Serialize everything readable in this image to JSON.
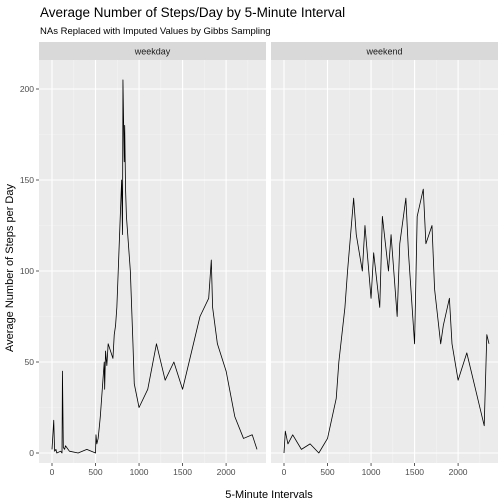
{
  "chart_data": {
    "type": "line",
    "title": "Average Number of Steps/Day by 5-Minute Interval",
    "subtitle": "NAs Replaced with Imputed Values by Gibbs Sampling",
    "xlabel": "5-Minute Intervals",
    "ylabel": "Average Number of Steps per Day",
    "xlim": [
      0,
      2355
    ],
    "ylim": [
      0,
      210
    ],
    "x_ticks": [
      0,
      500,
      1000,
      1500,
      2000
    ],
    "y_ticks": [
      0,
      50,
      100,
      150,
      200
    ],
    "grid": true,
    "facets": [
      {
        "name": "weekday",
        "x": [
          0,
          20,
          30,
          45,
          55,
          100,
          115,
          120,
          130,
          145,
          155,
          200,
          300,
          400,
          500,
          505,
          515,
          530,
          545,
          555,
          600,
          605,
          615,
          630,
          645,
          700,
          715,
          730,
          745,
          800,
          810,
          815,
          830,
          835,
          845,
          855,
          900,
          930,
          945,
          1000,
          1100,
          1200,
          1300,
          1400,
          1500,
          1600,
          1700,
          1800,
          1830,
          1845,
          1900,
          2000,
          2100,
          2200,
          2300,
          2355
        ],
        "y": [
          2,
          18,
          1,
          2,
          0,
          1,
          0,
          45,
          3,
          2,
          4,
          1,
          0,
          2,
          0,
          10,
          5,
          8,
          15,
          20,
          50,
          35,
          56,
          48,
          60,
          52,
          65,
          70,
          80,
          150,
          120,
          205,
          160,
          180,
          145,
          130,
          100,
          60,
          38,
          25,
          35,
          60,
          40,
          50,
          35,
          55,
          75,
          85,
          106,
          80,
          60,
          45,
          20,
          8,
          10,
          2
        ]
      },
      {
        "name": "weekend",
        "x": [
          0,
          15,
          45,
          100,
          200,
          300,
          400,
          500,
          600,
          630,
          700,
          730,
          800,
          830,
          900,
          930,
          1000,
          1030,
          1100,
          1130,
          1200,
          1230,
          1300,
          1330,
          1400,
          1430,
          1500,
          1530,
          1600,
          1630,
          1700,
          1730,
          1800,
          1830,
          1900,
          1930,
          2000,
          2100,
          2200,
          2300,
          2330,
          2355
        ],
        "y": [
          0,
          12,
          5,
          10,
          2,
          5,
          0,
          8,
          30,
          50,
          80,
          100,
          140,
          120,
          100,
          125,
          85,
          110,
          80,
          130,
          100,
          120,
          75,
          115,
          140,
          110,
          60,
          130,
          145,
          115,
          125,
          90,
          60,
          70,
          85,
          60,
          40,
          55,
          35,
          15,
          65,
          60
        ]
      }
    ]
  }
}
